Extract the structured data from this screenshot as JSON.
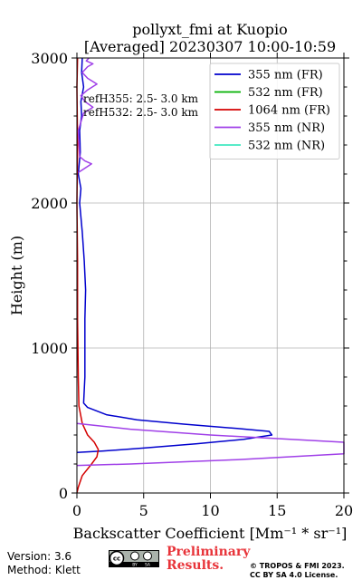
{
  "chart_data": {
    "type": "line",
    "title_lines": [
      "pollyxt_fmi at Kuopio",
      "[Averaged] 20230307 10:00-10:59"
    ],
    "xlabel": "Backscatter Coefficient [Mm⁻¹ * sr⁻¹]",
    "ylabel": "Height (m)",
    "xlim": [
      0,
      20
    ],
    "ylim": [
      0,
      3000
    ],
    "xticks": [
      0,
      5,
      10,
      15,
      20
    ],
    "yticks": [
      0,
      1000,
      2000,
      3000
    ],
    "xtick_labels": [
      "0",
      "5",
      "10",
      "15",
      "20"
    ],
    "ytick_labels": [
      "0",
      "1000",
      "2000",
      "3000"
    ],
    "grid": true,
    "legend_position": "top-right",
    "annotations": [
      "refH355:  2.5- 3.0 km",
      "refH532:  2.5- 3.0 km"
    ],
    "series": [
      {
        "name": "355 nm (FR)",
        "color": "#0000cd",
        "points": [
          [
            0,
            280
          ],
          [
            2,
            290
          ],
          [
            5,
            310
          ],
          [
            9,
            340
          ],
          [
            12.5,
            370
          ],
          [
            14.6,
            400
          ],
          [
            14.4,
            425
          ],
          [
            12,
            445
          ],
          [
            8,
            475
          ],
          [
            4.5,
            505
          ],
          [
            2.2,
            540
          ],
          [
            0.8,
            590
          ],
          [
            0.5,
            620
          ],
          [
            0.6,
            800
          ],
          [
            0.6,
            1000
          ],
          [
            0.6,
            1200
          ],
          [
            0.65,
            1400
          ],
          [
            0.55,
            1600
          ],
          [
            0.4,
            1800
          ],
          [
            0.2,
            2000
          ],
          [
            0.3,
            2100
          ],
          [
            0.1,
            2200
          ],
          [
            0.25,
            2350
          ],
          [
            0.2,
            2500
          ],
          [
            0.35,
            2600
          ],
          [
            0.3,
            2700
          ],
          [
            0.5,
            2800
          ],
          [
            0.35,
            2900
          ],
          [
            0.4,
            3000
          ]
        ]
      },
      {
        "name": "532 nm (FR)",
        "color": "#00b000",
        "points": []
      },
      {
        "name": "1064 nm (FR)",
        "color": "#d40000",
        "points": [
          [
            0,
            0
          ],
          [
            0.1,
            40
          ],
          [
            0.4,
            120
          ],
          [
            1.1,
            200
          ],
          [
            1.5,
            250
          ],
          [
            1.6,
            300
          ],
          [
            1.3,
            350
          ],
          [
            0.8,
            400
          ],
          [
            0.4,
            480
          ],
          [
            0.15,
            600
          ],
          [
            0.1,
            800
          ],
          [
            0.05,
            1200
          ],
          [
            0.05,
            1600
          ],
          [
            0.0,
            2000
          ],
          [
            0.05,
            2400
          ],
          [
            0.0,
            2800
          ],
          [
            0.05,
            3000
          ]
        ]
      },
      {
        "name": "355 nm (NR)",
        "color": "#a040e8",
        "points": [
          [
            0,
            190
          ],
          [
            4,
            200
          ],
          [
            12,
            230
          ],
          [
            20,
            270
          ],
          [
            20,
            350
          ],
          [
            16,
            370
          ],
          [
            10,
            400
          ],
          [
            4,
            440
          ],
          [
            0,
            480
          ]
        ]
      },
      {
        "name": "532 nm (NR)",
        "color": "#40e8c0",
        "points": []
      },
      {
        "name": "355 nm (NR) upper",
        "color": "#a040e8",
        "points": [
          [
            0.1,
            2210
          ],
          [
            0.6,
            2240
          ],
          [
            1.1,
            2270
          ],
          [
            0.6,
            2290
          ],
          [
            0.2,
            2320
          ],
          [
            0.1,
            2500
          ],
          [
            0.5,
            2620
          ],
          [
            1.2,
            2660
          ],
          [
            0.6,
            2700
          ],
          [
            0.3,
            2740
          ],
          [
            0.8,
            2780
          ],
          [
            1.5,
            2820
          ],
          [
            0.8,
            2860
          ],
          [
            0.4,
            2900
          ],
          [
            0.8,
            2940
          ],
          [
            1.2,
            2960
          ],
          [
            0.7,
            2980
          ],
          [
            0.9,
            3000
          ]
        ]
      }
    ]
  },
  "footer": {
    "version": "Version: 3.6",
    "method": "Method: Klett",
    "preliminary": [
      "Preliminary",
      "Results."
    ],
    "copyright": [
      "© TROPOS & FMI 2023.",
      "CC BY SA 4.0 License."
    ],
    "cc_logo": [
      "cc",
      "BY",
      "SA"
    ]
  },
  "colors": {
    "grid": "#b0b0b0",
    "preliminary": "#e8343a"
  }
}
